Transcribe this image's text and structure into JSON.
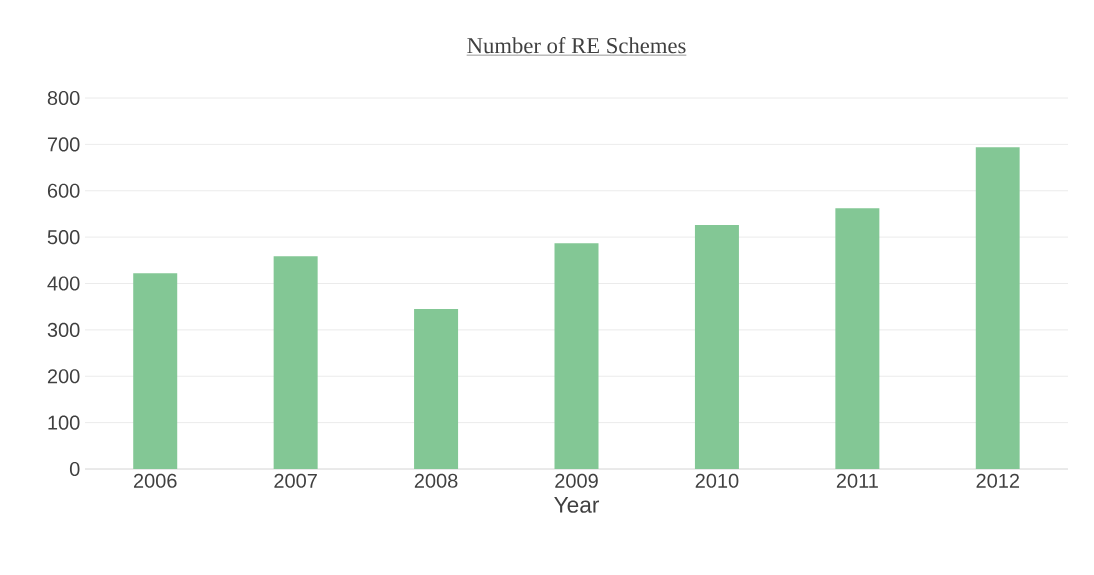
{
  "chart_data": {
    "type": "bar",
    "title": "Number of RE Schemes",
    "xlabel": "Year",
    "categories": [
      "2006",
      "2007",
      "2008",
      "2009",
      "2010",
      "2011",
      "2012"
    ],
    "values": [
      422,
      459,
      345,
      487,
      526,
      562,
      694
    ],
    "color": "#83c795",
    "ylim": [
      0,
      800
    ],
    "yticks": [
      0,
      100,
      200,
      300,
      400,
      500,
      600,
      700,
      800
    ],
    "grid": "y"
  }
}
